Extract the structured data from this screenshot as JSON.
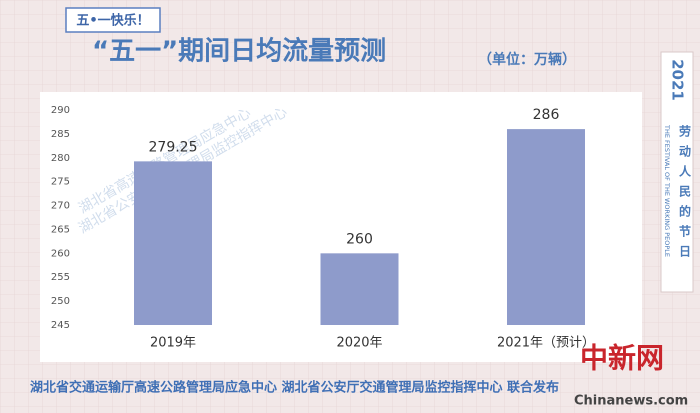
{
  "badge": "五•一快乐！",
  "side": {
    "year": "2021",
    "slogan": "劳动人民的节日",
    "english": "THE FESTIVAL OF THE WORKING PEOPLE"
  },
  "footer": "湖北省交通运输厅高速公路管理局应急中心 湖北省公安厅交通管理局监控指挥中心 联合发布",
  "watermarks": [
    "湖北省高速公路管理局应急中心",
    "湖北省公安厅交通管理局监控指挥中心"
  ],
  "source": {
    "logo": "中新网",
    "site": "Chinanews.com"
  },
  "chart_data": {
    "type": "bar",
    "title": "“五一”期间日均流量预测",
    "subtitle": "（单位：万辆）",
    "categories": [
      "2019年",
      "2020年",
      "2021年（预计）"
    ],
    "values": [
      279.25,
      260,
      286
    ],
    "color": "#8e9bcb",
    "ylim": [
      245,
      290
    ],
    "yticks": [
      245,
      250,
      255,
      260,
      265,
      270,
      275,
      280,
      285,
      290
    ],
    "grid": false
  }
}
